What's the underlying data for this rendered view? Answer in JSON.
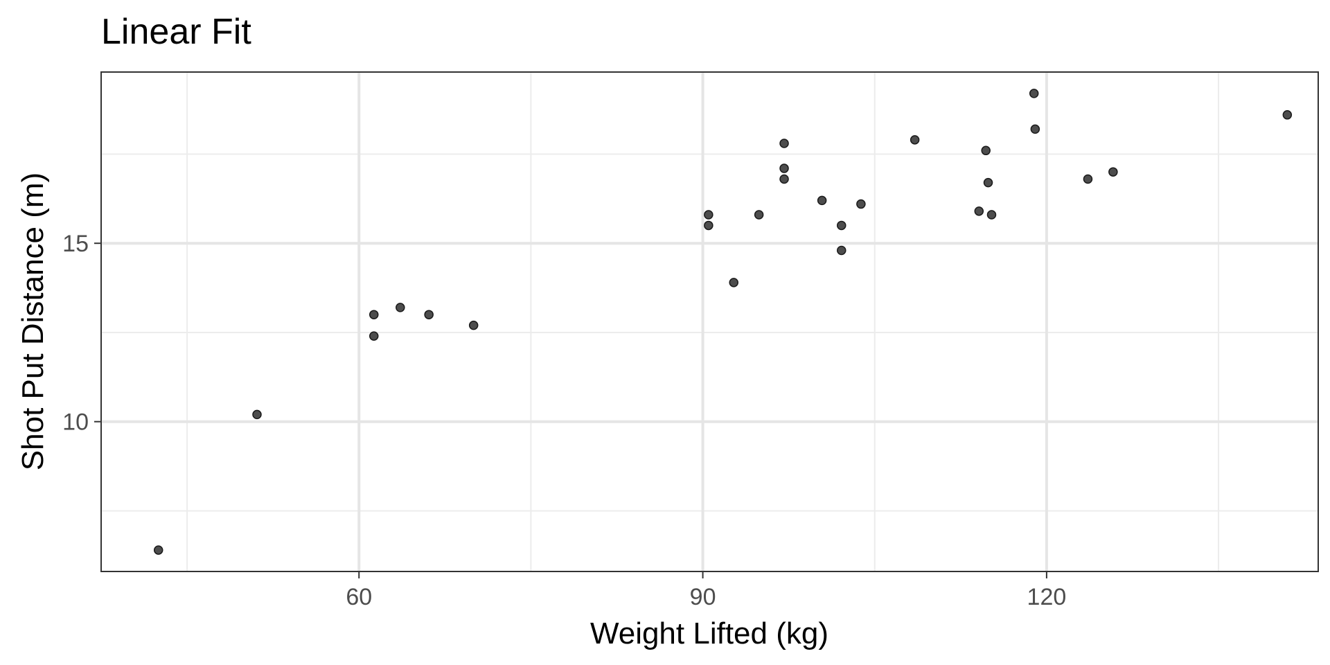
{
  "chart_data": {
    "type": "scatter",
    "title": "Linear Fit",
    "xlabel": "Weight Lifted (kg)",
    "ylabel": "Shot Put Distance (m)",
    "xlim": [
      37.5,
      143.7
    ],
    "ylim": [
      5.8,
      19.8
    ],
    "x_major_ticks": [
      60,
      90,
      120
    ],
    "x_minor_gridlines": [
      45,
      75,
      105,
      135
    ],
    "y_major_ticks": [
      10,
      15
    ],
    "y_minor_gridlines": [
      7.5,
      12.5,
      17.5
    ],
    "grid": true,
    "legend": "none",
    "point_color": "#4d4d4d",
    "point_stroke": "#1a1a1a",
    "panel_border_color": "#333333",
    "major_grid_color": "#e5e5e5",
    "minor_grid_color": "#ececec",
    "series": [
      {
        "points": [
          [
            42.5,
            6.4
          ],
          [
            51.1,
            10.2
          ],
          [
            61.3,
            13.0
          ],
          [
            61.3,
            12.4
          ],
          [
            63.6,
            13.2
          ],
          [
            66.1,
            13.0
          ],
          [
            70.0,
            12.7
          ],
          [
            90.5,
            15.8
          ],
          [
            90.5,
            15.5
          ],
          [
            92.7,
            13.9
          ],
          [
            94.9,
            15.8
          ],
          [
            97.1,
            17.8
          ],
          [
            97.1,
            17.1
          ],
          [
            97.1,
            16.8
          ],
          [
            100.4,
            16.2
          ],
          [
            102.1,
            15.5
          ],
          [
            102.1,
            14.8
          ],
          [
            103.8,
            16.1
          ],
          [
            108.5,
            17.9
          ],
          [
            114.1,
            15.9
          ],
          [
            114.7,
            17.6
          ],
          [
            114.9,
            16.7
          ],
          [
            115.2,
            15.8
          ],
          [
            118.9,
            19.2
          ],
          [
            119.0,
            18.2
          ],
          [
            123.6,
            16.8
          ],
          [
            125.8,
            17.0
          ],
          [
            141.0,
            18.6
          ]
        ]
      }
    ]
  }
}
